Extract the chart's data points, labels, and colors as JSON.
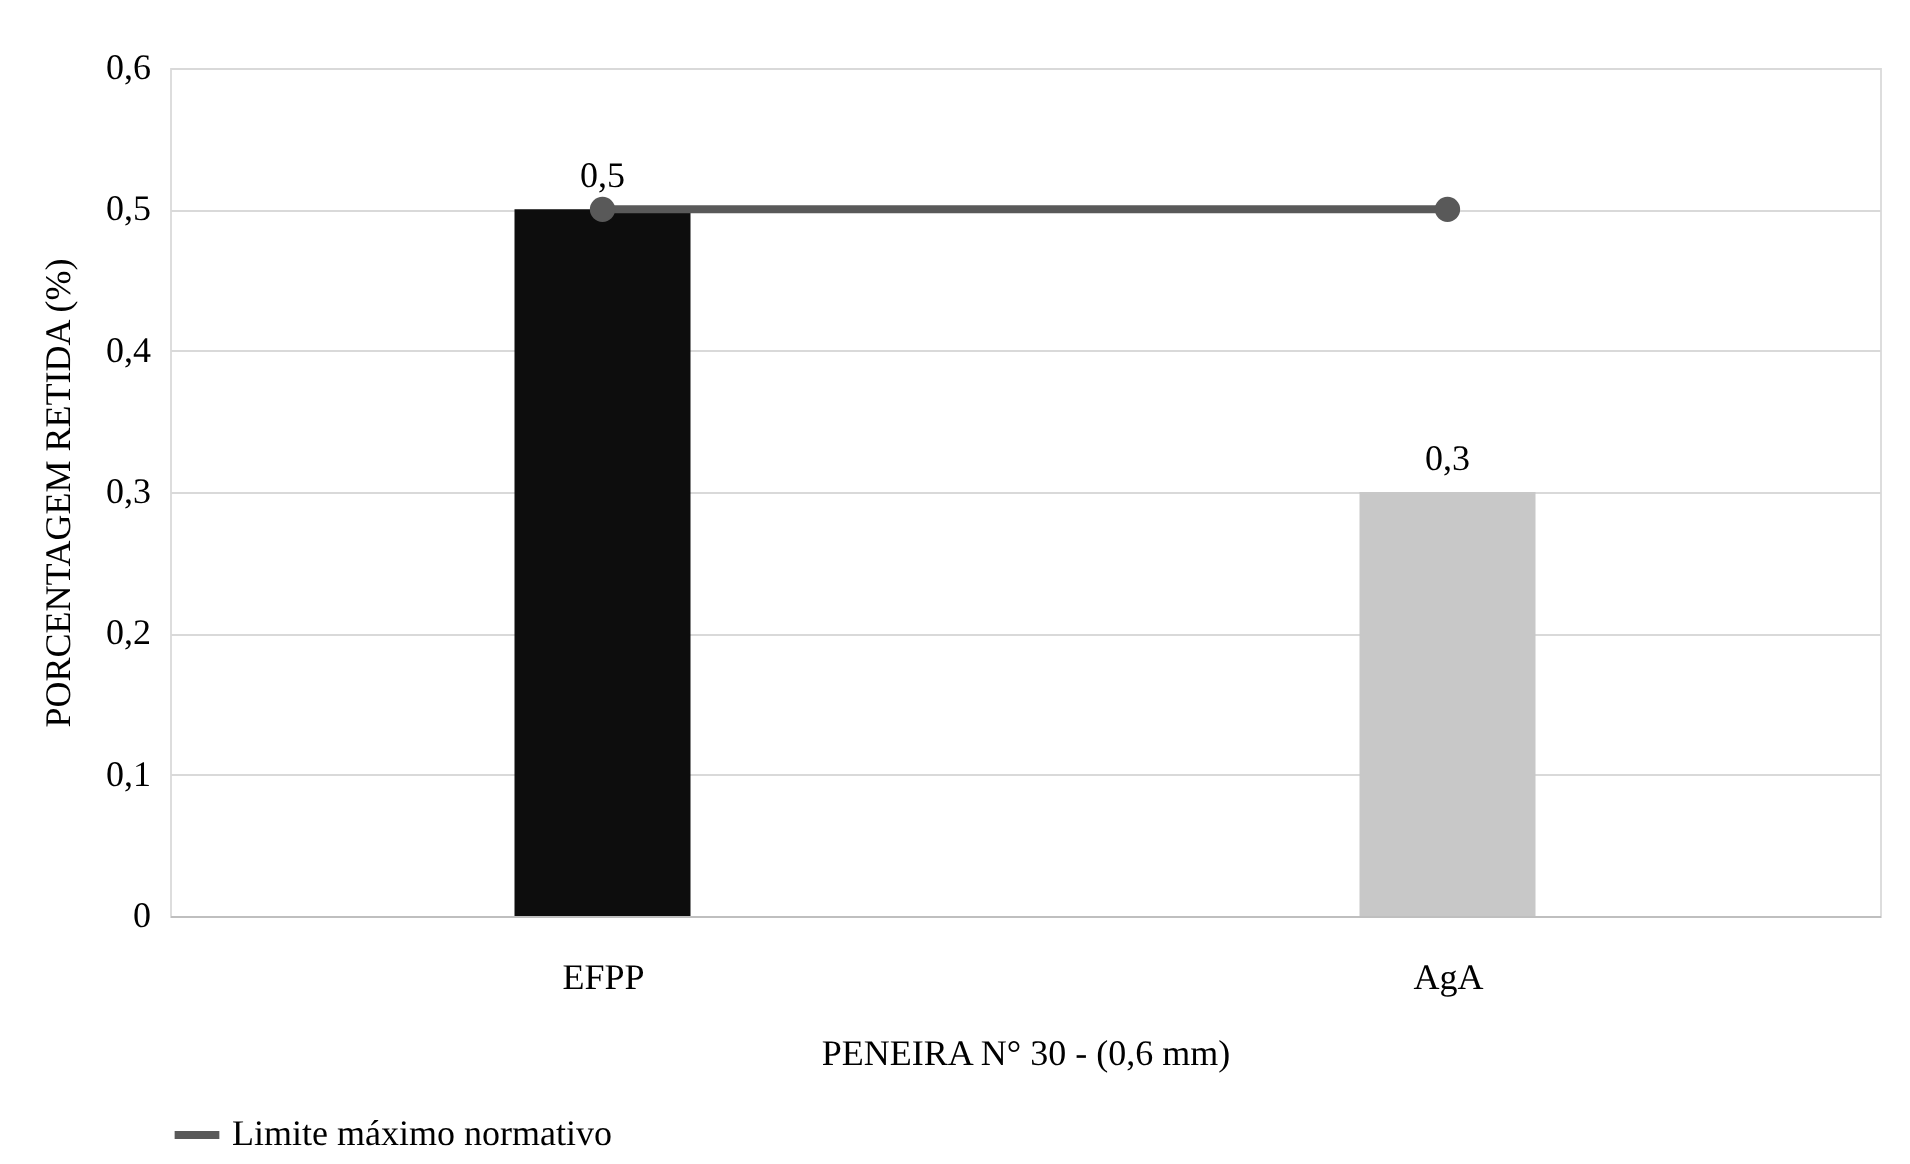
{
  "chart_data": {
    "type": "bar",
    "xlabel": "PENEIRA N° 30 - (0,6 mm)",
    "ylabel": "PORCENTAGEM RETIDA (%)",
    "categories": [
      "EFPP",
      "AgA"
    ],
    "series": [
      {
        "colors": [
          "#0d0d0d",
          "#c8c8c8"
        ],
        "values": [
          0.5,
          0.3
        ],
        "value_labels": [
          "0,5",
          "0,3"
        ]
      },
      {
        "type": "line",
        "name": "Limite máximo normativo",
        "color": "#595959",
        "values": [
          0.5,
          0.5
        ],
        "marker": "circle"
      }
    ],
    "ylim": [
      0,
      0.6
    ],
    "yticks": [
      0,
      {
        "value": 0.1,
        "label": "0,1"
      },
      {
        "value": 0.2,
        "label": "0,2"
      },
      {
        "value": 0.3,
        "label": "0,3"
      },
      {
        "value": 0.4,
        "label": "0,4"
      },
      {
        "value": 0.5,
        "label": "0,5"
      },
      {
        "value": 0.6,
        "label": "0,6"
      }
    ],
    "grid": "y",
    "legend": "bottom"
  }
}
